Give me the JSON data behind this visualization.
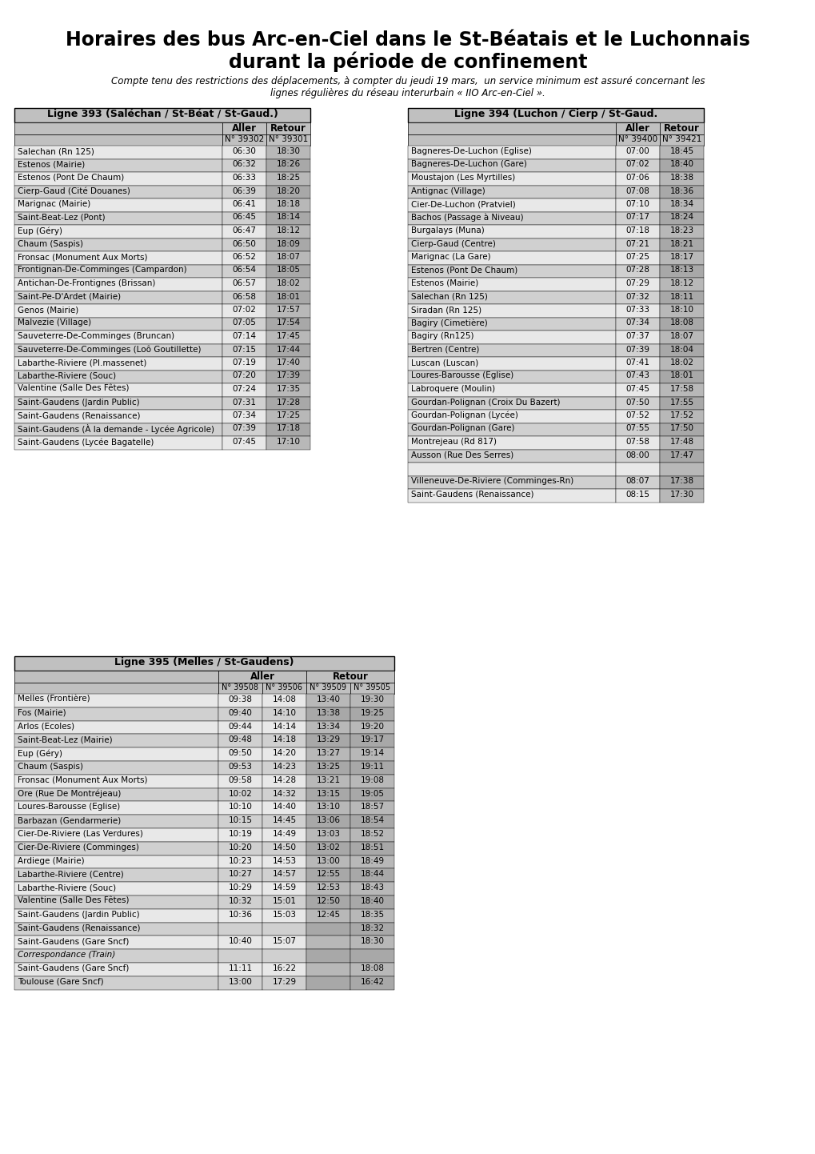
{
  "title_line1": "Horaires des bus Arc-en-Ciel dans le St-Béatais et le Luchonnais",
  "title_line2": "durant la période de confinement",
  "subtitle": "Compte tenu des restrictions des déplacements, à compter du jeudi 19 mars,  un service minimum est assuré concernant les\nlignes régulières du réseau interurbain « IIO Arc-en-Ciel ».",
  "ligne393_title": "Ligne 393 (Saléchan / St-Béat / St-Gaud.)",
  "ligne393_aller_num": "N° 39302",
  "ligne393_retour_num": "N° 39301",
  "ligne393_rows": [
    [
      "Salechan (Rn 125)",
      "06:30",
      "18:30"
    ],
    [
      "Estenos (Mairie)",
      "06:32",
      "18:26"
    ],
    [
      "Estenos (Pont De Chaum)",
      "06:33",
      "18:25"
    ],
    [
      "Cierp-Gaud (Cité Douanes)",
      "06:39",
      "18:20"
    ],
    [
      "Marignac (Mairie)",
      "06:41",
      "18:18"
    ],
    [
      "Saint-Beat-Lez (Pont)",
      "06:45",
      "18:14"
    ],
    [
      "Eup (Géry)",
      "06:47",
      "18:12"
    ],
    [
      "Chaum (Saspis)",
      "06:50",
      "18:09"
    ],
    [
      "Fronsac (Monument Aux Morts)",
      "06:52",
      "18:07"
    ],
    [
      "Frontignan-De-Comminges (Campardon)",
      "06:54",
      "18:05"
    ],
    [
      "Antichan-De-Frontignes (Brissan)",
      "06:57",
      "18:02"
    ],
    [
      "Saint-Pe-D'Ardet (Mairie)",
      "06:58",
      "18:01"
    ],
    [
      "Genos (Mairie)",
      "07:02",
      "17:57"
    ],
    [
      "Malvezie (Village)",
      "07:05",
      "17:54"
    ],
    [
      "Sauveterre-De-Comminges (Bruncan)",
      "07:14",
      "17:45"
    ],
    [
      "Sauveterre-De-Comminges (Loô Goutillette)",
      "07:15",
      "17:44"
    ],
    [
      "Labarthe-Riviere (Pl.massenet)",
      "07:19",
      "17:40"
    ],
    [
      "Labarthe-Riviere (Souc)",
      "07:20",
      "17:39"
    ],
    [
      "Valentine (Salle Des Fêtes)",
      "07:24",
      "17:35"
    ],
    [
      "Saint-Gaudens (Jardin Public)",
      "07:31",
      "17:28"
    ],
    [
      "Saint-Gaudens (Renaissance)",
      "07:34",
      "17:25"
    ],
    [
      "Saint-Gaudens (À la demande - Lycée Agricole)",
      "07:39",
      "17:18"
    ],
    [
      "Saint-Gaudens (Lycée Bagatelle)",
      "07:45",
      "17:10"
    ]
  ],
  "ligne394_title": "Ligne 394 (Luchon / Cierp / St-Gaud.",
  "ligne394_aller_num": "N° 39400",
  "ligne394_retour_num": "N° 39421",
  "ligne394_rows": [
    [
      "Bagneres-De-Luchon (Eglise)",
      "07:00",
      "18:45"
    ],
    [
      "Bagneres-De-Luchon (Gare)",
      "07:02",
      "18:40"
    ],
    [
      "Moustajon (Les Myrtilles)",
      "07:06",
      "18:38"
    ],
    [
      "Antignac (Village)",
      "07:08",
      "18:36"
    ],
    [
      "Cier-De-Luchon (Pratviel)",
      "07:10",
      "18:34"
    ],
    [
      "Bachos (Passage à Niveau)",
      "07:17",
      "18:24"
    ],
    [
      "Burgalays (Muna)",
      "07:18",
      "18:23"
    ],
    [
      "Cierp-Gaud (Centre)",
      "07:21",
      "18:21"
    ],
    [
      "Marignac (La Gare)",
      "07:25",
      "18:17"
    ],
    [
      "Estenos (Pont De Chaum)",
      "07:28",
      "18:13"
    ],
    [
      "Estenos (Mairie)",
      "07:29",
      "18:12"
    ],
    [
      "Salechan (Rn 125)",
      "07:32",
      "18:11"
    ],
    [
      "Siradan (Rn 125)",
      "07:33",
      "18:10"
    ],
    [
      "Bagiry (Cimetière)",
      "07:34",
      "18:08"
    ],
    [
      "Bagiry (Rn125)",
      "07:37",
      "18:07"
    ],
    [
      "Bertren (Centre)",
      "07:39",
      "18:04"
    ],
    [
      "Luscan (Luscan)",
      "07:41",
      "18:02"
    ],
    [
      "Loures-Barousse (Eglise)",
      "07:43",
      "18:01"
    ],
    [
      "Labroquere (Moulin)",
      "07:45",
      "17:58"
    ],
    [
      "Gourdan-Polignan (Croix Du Bazert)",
      "07:50",
      "17:55"
    ],
    [
      "Gourdan-Polignan (Lycée)",
      "07:52",
      "17:52"
    ],
    [
      "Gourdan-Polignan (Gare)",
      "07:55",
      "17:50"
    ],
    [
      "Montrejeau (Rd 817)",
      "07:58",
      "17:48"
    ],
    [
      "Ausson (Rue Des Serres)",
      "08:00",
      "17:47"
    ],
    [
      "",
      "",
      ""
    ],
    [
      "Villeneuve-De-Riviere (Comminges-Rn)",
      "08:07",
      "17:38"
    ],
    [
      "Saint-Gaudens (Renaissance)",
      "08:15",
      "17:30"
    ]
  ],
  "ligne395_title": "Ligne 395 (Melles / St-Gaudens)",
  "ligne395_aller_nums": [
    "N° 39508",
    "N° 39506"
  ],
  "ligne395_retour_nums": [
    "N° 39509",
    "N° 39505"
  ],
  "ligne395_rows": [
    [
      "Melles (Frontière)",
      "09:38",
      "14:08",
      "13:40",
      "19:30"
    ],
    [
      "Fos (Mairie)",
      "09:40",
      "14:10",
      "13:38",
      "19:25"
    ],
    [
      "Arlos (Ecoles)",
      "09:44",
      "14:14",
      "13:34",
      "19:20"
    ],
    [
      "Saint-Beat-Lez (Mairie)",
      "09:48",
      "14:18",
      "13:29",
      "19:17"
    ],
    [
      "Eup (Géry)",
      "09:50",
      "14:20",
      "13:27",
      "19:14"
    ],
    [
      "Chaum (Saspis)",
      "09:53",
      "14:23",
      "13:25",
      "19:11"
    ],
    [
      "Fronsac (Monument Aux Morts)",
      "09:58",
      "14:28",
      "13:21",
      "19:08"
    ],
    [
      "Ore (Rue De Montréjeau)",
      "10:02",
      "14:32",
      "13:15",
      "19:05"
    ],
    [
      "Loures-Barousse (Eglise)",
      "10:10",
      "14:40",
      "13:10",
      "18:57"
    ],
    [
      "Barbazan (Gendarmerie)",
      "10:15",
      "14:45",
      "13:06",
      "18:54"
    ],
    [
      "Cier-De-Riviere (Las Verdures)",
      "10:19",
      "14:49",
      "13:03",
      "18:52"
    ],
    [
      "Cier-De-Riviere (Comminges)",
      "10:20",
      "14:50",
      "13:02",
      "18:51"
    ],
    [
      "Ardiege (Mairie)",
      "10:23",
      "14:53",
      "13:00",
      "18:49"
    ],
    [
      "Labarthe-Riviere (Centre)",
      "10:27",
      "14:57",
      "12:55",
      "18:44"
    ],
    [
      "Labarthe-Riviere (Souc)",
      "10:29",
      "14:59",
      "12:53",
      "18:43"
    ],
    [
      "Valentine (Salle Des Fêtes)",
      "10:32",
      "15:01",
      "12:50",
      "18:40"
    ],
    [
      "Saint-Gaudens (Jardin Public)",
      "10:36",
      "15:03",
      "12:45",
      "18:35"
    ],
    [
      "Saint-Gaudens (Renaissance)",
      "",
      "",
      "",
      "18:32"
    ],
    [
      "Saint-Gaudens (Gare Sncf)",
      "10:40",
      "15:07",
      "",
      "18:30"
    ],
    [
      "Correspondance (Train)",
      "",
      "",
      "",
      ""
    ],
    [
      "Saint-Gaudens (Gare Sncf)",
      "11:11",
      "16:22",
      "",
      "18:08"
    ],
    [
      "Toulouse (Gare Sncf)",
      "13:00",
      "17:29",
      "",
      "16:42"
    ]
  ],
  "bg_color": "#ffffff",
  "header_bg": "#c0c0c0",
  "row_bg_light": "#e8e8e8",
  "row_bg_dark": "#d0d0d0",
  "table_border": "#000000",
  "text_color": "#000000"
}
